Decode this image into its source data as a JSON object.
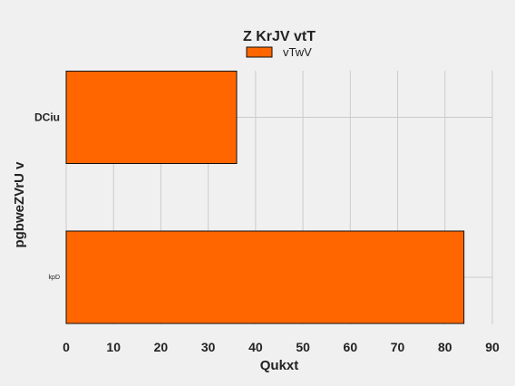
{
  "chart_data": {
    "type": "bar",
    "orientation": "horizontal",
    "title": "Z KrJV vtT",
    "xlabel": "Qukxt",
    "ylabel": "pgbweZVrU v",
    "categories": [
      "DCiu",
      "kpD"
    ],
    "series": [
      {
        "name": "vTwV",
        "values": [
          36,
          84
        ]
      }
    ],
    "xlim": [
      0,
      90
    ],
    "xticks": [
      0,
      10,
      20,
      30,
      40,
      50,
      60,
      70,
      80,
      90
    ],
    "grid": true,
    "legend_position": "top-center"
  },
  "colors": {
    "background": "#f0f0f0",
    "bar_fill": "#ff6600",
    "bar_stroke": "#111111",
    "grid": "#cbcbcb"
  }
}
